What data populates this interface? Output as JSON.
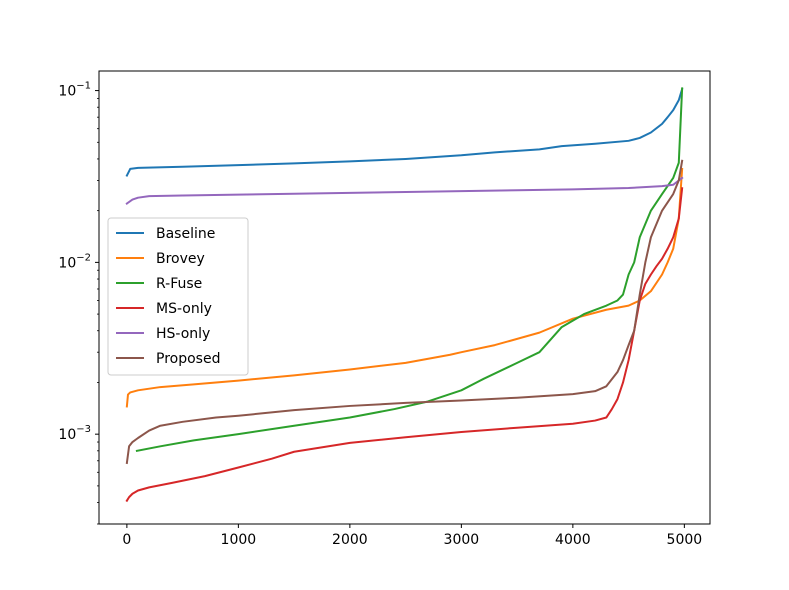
{
  "chart_data": {
    "type": "line",
    "title": "",
    "xlabel": "",
    "ylabel": "",
    "xlim": [
      -250,
      5230
    ],
    "ylim": [
      0.0003,
      0.13
    ],
    "yscale": "log",
    "grid": false,
    "legend_position": "center-left",
    "x_ticks": [
      {
        "value": 0,
        "label": "0"
      },
      {
        "value": 1000,
        "label": "1000"
      },
      {
        "value": 2000,
        "label": "2000"
      },
      {
        "value": 3000,
        "label": "3000"
      },
      {
        "value": 4000,
        "label": "4000"
      },
      {
        "value": 5000,
        "label": "5000"
      }
    ],
    "y_ticks": [
      {
        "value": 0.001,
        "base": "10",
        "exp": "−3"
      },
      {
        "value": 0.01,
        "base": "10",
        "exp": "−2"
      },
      {
        "value": 0.1,
        "base": "10",
        "exp": "−1"
      }
    ],
    "series": [
      {
        "name": "Baseline",
        "color": "#1f77b4",
        "x": [
          0,
          30,
          100,
          500,
          1000,
          1500,
          2000,
          2500,
          3000,
          3300,
          3700,
          3900,
          4200,
          4500,
          4600,
          4700,
          4800,
          4850,
          4900,
          4950,
          4980
        ],
        "y": [
          0.032,
          0.035,
          0.0355,
          0.036,
          0.0368,
          0.0377,
          0.0387,
          0.04,
          0.042,
          0.0437,
          0.0455,
          0.0475,
          0.049,
          0.051,
          0.053,
          0.057,
          0.064,
          0.07,
          0.077,
          0.088,
          0.102
        ]
      },
      {
        "name": "Brovey",
        "color": "#ff7f0e",
        "x": [
          0,
          10,
          30,
          100,
          300,
          600,
          1000,
          1500,
          2000,
          2500,
          2900,
          3000,
          3300,
          3700,
          4000,
          4300,
          4500,
          4600,
          4700,
          4800,
          4850,
          4900,
          4950,
          4980
        ],
        "y": [
          0.00145,
          0.0017,
          0.00175,
          0.0018,
          0.00188,
          0.00195,
          0.00205,
          0.0022,
          0.00238,
          0.0026,
          0.0029,
          0.003,
          0.0033,
          0.0039,
          0.0047,
          0.0053,
          0.0056,
          0.006,
          0.0068,
          0.0085,
          0.01,
          0.012,
          0.018,
          0.035
        ]
      },
      {
        "name": "R-Fuse",
        "color": "#2ca02c",
        "x": [
          90,
          300,
          600,
          1000,
          1500,
          2000,
          2400,
          2700,
          3000,
          3200,
          3500,
          3700,
          3900,
          4100,
          4300,
          4400,
          4450,
          4500,
          4550,
          4600,
          4700,
          4800,
          4900,
          4950,
          4980
        ],
        "y": [
          0.0008,
          0.00085,
          0.00092,
          0.001,
          0.00112,
          0.00125,
          0.0014,
          0.00155,
          0.0018,
          0.0021,
          0.0026,
          0.003,
          0.0042,
          0.005,
          0.0056,
          0.006,
          0.0065,
          0.0085,
          0.01,
          0.014,
          0.02,
          0.025,
          0.031,
          0.038,
          0.103
        ]
      },
      {
        "name": "MS-only",
        "color": "#d62728",
        "x": [
          0,
          20,
          50,
          100,
          200,
          400,
          700,
          1000,
          1300,
          1500,
          2000,
          2500,
          3000,
          3500,
          4000,
          4200,
          4300,
          4350,
          4400,
          4450,
          4500,
          4550,
          4600,
          4650,
          4700,
          4750,
          4800,
          4850,
          4900,
          4950,
          4980
        ],
        "y": [
          0.00041,
          0.00043,
          0.00045,
          0.00047,
          0.00049,
          0.00052,
          0.00057,
          0.00064,
          0.00072,
          0.00079,
          0.00089,
          0.00096,
          0.00103,
          0.00109,
          0.00115,
          0.0012,
          0.00125,
          0.0014,
          0.0016,
          0.002,
          0.0027,
          0.004,
          0.006,
          0.0075,
          0.0085,
          0.0095,
          0.0105,
          0.012,
          0.014,
          0.018,
          0.027
        ]
      },
      {
        "name": "HS-only",
        "color": "#9467bd",
        "x": [
          0,
          50,
          100,
          200,
          500,
          1000,
          1500,
          2000,
          2500,
          3000,
          3500,
          4000,
          4500,
          4800,
          4900,
          4980
        ],
        "y": [
          0.022,
          0.0232,
          0.0238,
          0.0243,
          0.0245,
          0.0248,
          0.0251,
          0.0254,
          0.0257,
          0.026,
          0.0263,
          0.0266,
          0.0271,
          0.0278,
          0.0283,
          0.031
        ]
      },
      {
        "name": "Proposed",
        "color": "#8c564b",
        "x": [
          0,
          20,
          50,
          100,
          200,
          300,
          500,
          800,
          1000,
          1500,
          2000,
          2500,
          3000,
          3500,
          4000,
          4200,
          4300,
          4400,
          4450,
          4500,
          4550,
          4600,
          4650,
          4700,
          4800,
          4900,
          4950,
          4980
        ],
        "y": [
          0.00068,
          0.00085,
          0.0009,
          0.00095,
          0.00105,
          0.00112,
          0.00118,
          0.00125,
          0.00128,
          0.00138,
          0.00146,
          0.00152,
          0.00157,
          0.00163,
          0.00171,
          0.00178,
          0.0019,
          0.0023,
          0.0027,
          0.0033,
          0.004,
          0.0065,
          0.01,
          0.014,
          0.02,
          0.025,
          0.03,
          0.039
        ]
      }
    ]
  }
}
